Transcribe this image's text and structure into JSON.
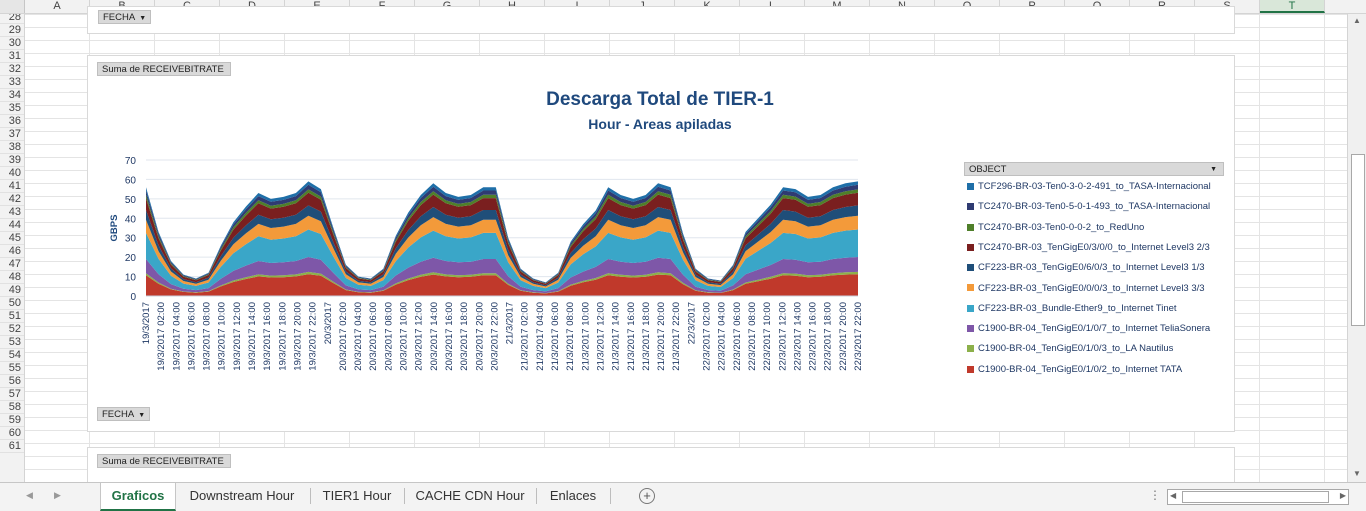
{
  "columns": [
    "A",
    "B",
    "C",
    "D",
    "E",
    "F",
    "G",
    "H",
    "I",
    "J",
    "K",
    "L",
    "M",
    "N",
    "O",
    "P",
    "Q",
    "R",
    "S",
    "T"
  ],
  "rows": [
    "28",
    "29",
    "30",
    "31",
    "32",
    "33",
    "34",
    "35",
    "36",
    "37",
    "38",
    "39",
    "40",
    "41",
    "42",
    "43",
    "44",
    "45",
    "46",
    "47",
    "48",
    "49",
    "50",
    "51",
    "52",
    "53",
    "54",
    "55",
    "56",
    "57",
    "58",
    "59",
    "60",
    "61"
  ],
  "pivot_top": {
    "fecha_button": "FECHA"
  },
  "pivot_main": {
    "sum_button": "Suma de RECEIVEBITRATE",
    "fecha_button": "FECHA",
    "object_button": "OBJECT"
  },
  "pivot_next": {
    "sum_button": "Suma de RECEIVEBITRATE"
  },
  "chart_data": {
    "type": "area",
    "title": "Descarga Total de TIER-1",
    "subtitle": "Hour - Areas apiladas",
    "ylabel": "GBPS",
    "ylim": [
      0,
      70
    ],
    "yticks": [
      "0",
      "10",
      "20",
      "30",
      "40",
      "50",
      "60",
      "70"
    ],
    "grid": true,
    "legend_position": "right",
    "x_tick_labels": [
      "19/3/2017",
      "19/3/2017 02:00",
      "19/3/2017 04:00",
      "19/3/2017 06:00",
      "19/3/2017 08:00",
      "19/3/2017 10:00",
      "19/3/2017 12:00",
      "19/3/2017 14:00",
      "19/3/2017 16:00",
      "19/3/2017 18:00",
      "19/3/2017 20:00",
      "19/3/2017 22:00",
      "20/3/2017",
      "20/3/2017 02:00",
      "20/3/2017 04:00",
      "20/3/2017 06:00",
      "20/3/2017 08:00",
      "20/3/2017 10:00",
      "20/3/2017 12:00",
      "20/3/2017 14:00",
      "20/3/2017 16:00",
      "20/3/2017 18:00",
      "20/3/2017 20:00",
      "20/3/2017 22:00",
      "21/3/2017",
      "21/3/2017 02:00",
      "21/3/2017 04:00",
      "21/3/2017 06:00",
      "21/3/2017 08:00",
      "21/3/2017 10:00",
      "21/3/2017 12:00",
      "21/3/2017 14:00",
      "21/3/2017 16:00",
      "21/3/2017 18:00",
      "21/3/2017 20:00",
      "21/3/2017 22:00",
      "22/3/2017",
      "22/3/2017 02:00",
      "22/3/2017 04:00",
      "22/3/2017 06:00",
      "22/3/2017 08:00",
      "22/3/2017 10:00",
      "22/3/2017 12:00",
      "22/3/2017 14:00",
      "22/3/2017 16:00",
      "22/3/2017 18:00",
      "22/3/2017 20:00",
      "22/3/2017 22:00"
    ],
    "series_totals": [
      56,
      33,
      18,
      11,
      9,
      12,
      26,
      38,
      46,
      53,
      50,
      51,
      53,
      59,
      55,
      35,
      16,
      10,
      9,
      14,
      31,
      43,
      52,
      58,
      53,
      51,
      52,
      56,
      56,
      30,
      14,
      9,
      7,
      12,
      28,
      37,
      44,
      56,
      52,
      50,
      52,
      58,
      56,
      32,
      14,
      9,
      8,
      16,
      33,
      40,
      47,
      56,
      55,
      51,
      52,
      56,
      58,
      59
    ],
    "series": [
      {
        "name": "C1900-BR-04_TenGigE0/1/0/2_to_Internet TATA",
        "color": "#c0392b",
        "share": 0.19
      },
      {
        "name": "C1900-BR-04_TenGigE0/1/0/3_to_LA Nautilus",
        "color": "#8cb04a",
        "share": 0.02
      },
      {
        "name": "C1900-BR-04_TenGigE0/1/0/7_to_Internet TeliaSonera",
        "color": "#7e57a8",
        "share": 0.13
      },
      {
        "name": "CF223-BR-03_Bundle-Ether9_to_Internet Tinet",
        "color": "#3aa6c8",
        "share": 0.24
      },
      {
        "name": "CF223-BR-03_TenGigE0/0/0/3_to_Internet Level3 3/3",
        "color": "#f39a3a",
        "share": 0.12
      },
      {
        "name": "CF223-BR-03_TenGigE0/6/0/3_to_Internet Level3 1/3",
        "color": "#1f4e79",
        "share": 0.09
      },
      {
        "name": "TC2470-BR-03_TenGigE0/3/0/0_to_Internet Level3 2/3",
        "color": "#7a1f1f",
        "share": 0.11
      },
      {
        "name": "TC2470-BR-03-Ten0-0-0-2_to_RedUno",
        "color": "#4f7f2a",
        "share": 0.03
      },
      {
        "name": "TC2470-BR-03-Ten0-5-0-1-493_to_TASA-Internacional",
        "color": "#2f3b72",
        "share": 0.04
      },
      {
        "name": "TCF296-BR-03-Ten0-3-0-2-491_to_TASA-Internacional",
        "color": "#1f6fa8",
        "share": 0.03
      }
    ]
  },
  "legend": [
    {
      "label": "TCF296-BR-03-Ten0-3-0-2-491_to_TASA-Internacional",
      "color": "#1f6fa8"
    },
    {
      "label": "TC2470-BR-03-Ten0-5-0-1-493_to_TASA-Internacional",
      "color": "#2f3b72"
    },
    {
      "label": "TC2470-BR-03-Ten0-0-0-2_to_RedUno",
      "color": "#4f7f2a"
    },
    {
      "label": "TC2470-BR-03_TenGigE0/3/0/0_to_Internet Level3 2/3",
      "color": "#7a1f1f"
    },
    {
      "label": "CF223-BR-03_TenGigE0/6/0/3_to_Internet Level3 1/3",
      "color": "#1f4e79"
    },
    {
      "label": "CF223-BR-03_TenGigE0/0/0/3_to_Internet Level3 3/3",
      "color": "#f39a3a"
    },
    {
      "label": "CF223-BR-03_Bundle-Ether9_to_Internet Tinet",
      "color": "#3aa6c8"
    },
    {
      "label": "C1900-BR-04_TenGigE0/1/0/7_to_Internet TeliaSonera",
      "color": "#7e57a8"
    },
    {
      "label": "C1900-BR-04_TenGigE0/1/0/3_to_LA Nautilus",
      "color": "#8cb04a"
    },
    {
      "label": "C1900-BR-04_TenGigE0/1/0/2_to_Internet TATA",
      "color": "#c0392b"
    }
  ],
  "tabs": [
    {
      "label": "Graficos",
      "active": true
    },
    {
      "label": "Downstream Hour",
      "active": false
    },
    {
      "label": "TIER1 Hour",
      "active": false
    },
    {
      "label": "CACHE CDN Hour",
      "active": false
    },
    {
      "label": "Enlaces",
      "active": false
    }
  ],
  "icons": {
    "prev": "triangle-left-icon",
    "next": "triangle-right-icon",
    "add": "plus-circle-icon",
    "options": "vertical-dots-icon"
  }
}
